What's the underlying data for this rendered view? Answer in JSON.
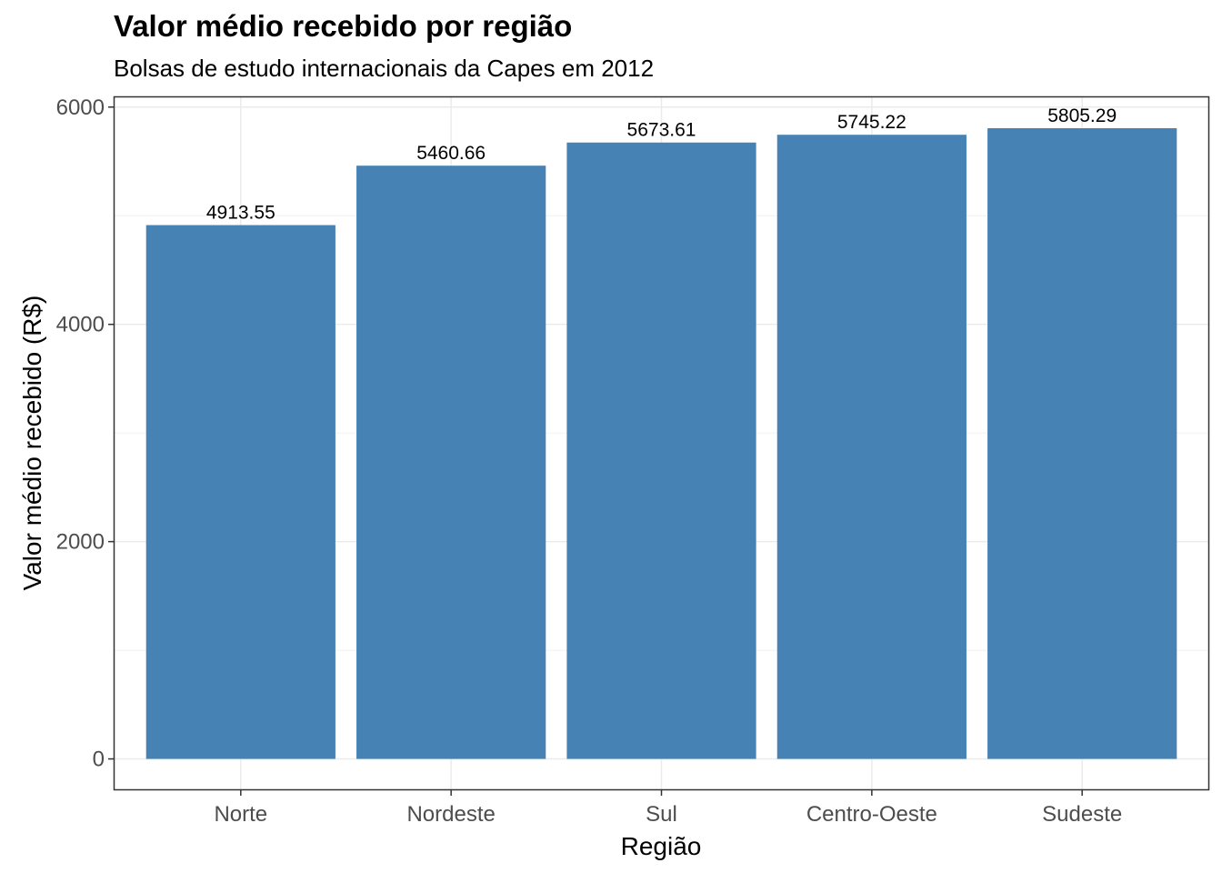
{
  "chart_data": {
    "type": "bar",
    "title": "Valor médio recebido por região",
    "subtitle": "Bolsas de estudo internacionais da Capes em 2012",
    "xlabel": "Região",
    "ylabel": "Valor médio recebido (R$)",
    "categories": [
      "Norte",
      "Nordeste",
      "Sul",
      "Centro-Oeste",
      "Sudeste"
    ],
    "values": [
      4913.55,
      5460.66,
      5673.61,
      5745.22,
      5805.29
    ],
    "data_labels": [
      "4913.55",
      "5460.66",
      "5673.61",
      "5745.22",
      "5805.29"
    ],
    "ylim": [
      -280,
      6090
    ],
    "yticks": [
      0,
      2000,
      4000,
      6000
    ],
    "grid": true,
    "bar_color": "#4682B4"
  }
}
